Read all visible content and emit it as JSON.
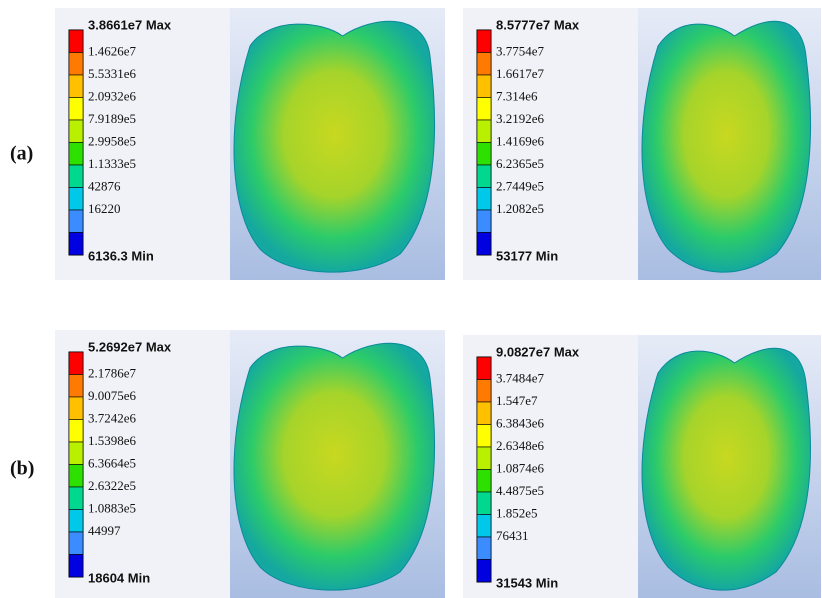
{
  "rows": [
    {
      "label": "(a)",
      "panels": [
        {
          "legend": [
            "3.8661e7 Max",
            "1.4626e7",
            "5.5331e6",
            "2.0932e6",
            "7.9189e5",
            "2.9958e5",
            "1.1333e5",
            "42876",
            "16220",
            "6136.3 Min"
          ]
        },
        {
          "legend": [
            "8.5777e7 Max",
            "3.7754e7",
            "1.6617e7",
            "7.314e6",
            "3.2192e6",
            "1.4169e6",
            "6.2365e5",
            "2.7449e5",
            "1.2082e5",
            "53177 Min"
          ]
        }
      ]
    },
    {
      "label": "(b)",
      "panels": [
        {
          "legend": [
            "5.2692e7 Max",
            "2.1786e7",
            "9.0075e6",
            "3.7242e6",
            "1.5398e6",
            "6.3664e5",
            "2.6322e5",
            "1.0883e5",
            "44997",
            "18604 Min"
          ]
        },
        {
          "legend": [
            "9.0827e7 Max",
            "3.7484e7",
            "1.547e7",
            "6.3843e6",
            "2.6348e6",
            "1.0874e6",
            "4.4875e5",
            "1.852e5",
            "76431",
            "31543 Min"
          ]
        }
      ]
    }
  ]
}
